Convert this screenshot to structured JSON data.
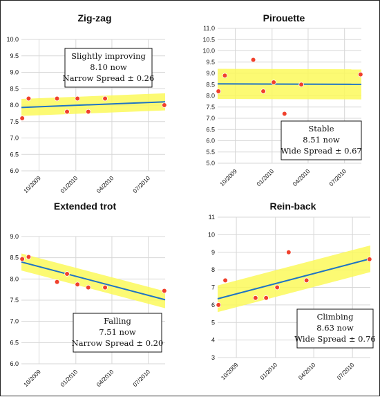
{
  "chart_data": [
    {
      "type": "scatter",
      "title": "Zig-zag",
      "ylim": [
        6.0,
        10.0
      ],
      "yticks": [
        "10.0",
        "9.5",
        "9.0",
        "8.5",
        "8.0",
        "7.5",
        "7.0",
        "6.5",
        "6.0"
      ],
      "xticks": [
        "10/2009",
        "01/2010",
        "04/2010",
        "07/2010"
      ],
      "points": [
        {
          "x": "2009-08-20",
          "y": 7.6
        },
        {
          "x": "2009-09-05",
          "y": 8.2
        },
        {
          "x": "2009-11-15",
          "y": 8.2
        },
        {
          "x": "2009-12-10",
          "y": 7.8
        },
        {
          "x": "2010-01-05",
          "y": 8.2
        },
        {
          "x": "2010-02-01",
          "y": 7.8
        },
        {
          "x": "2010-03-15",
          "y": 8.2
        },
        {
          "x": "2010-08-10",
          "y": 8.0
        }
      ],
      "trend": {
        "start": 7.93,
        "end": 8.1
      },
      "spread": 0.26,
      "annotation": [
        "Slightly  improving",
        "8.10 now",
        "Narrow Spread ± 0.26"
      ]
    },
    {
      "type": "scatter",
      "title": "Pirouette",
      "ylim": [
        5.0,
        11.0
      ],
      "yticks": [
        "11.0",
        "10.5",
        "10.0",
        "9.5",
        "9.0",
        "8.5",
        "8.0",
        "7.5",
        "7.0",
        "6.5",
        "6.0",
        "5.5",
        "5.0"
      ],
      "xticks": [
        "10/2009",
        "01/2010",
        "04/2010",
        "07/2010"
      ],
      "points": [
        {
          "x": "2009-08-20",
          "y": 8.2
        },
        {
          "x": "2009-09-05",
          "y": 8.9
        },
        {
          "x": "2009-11-15",
          "y": 9.6
        },
        {
          "x": "2009-12-10",
          "y": 8.2
        },
        {
          "x": "2010-01-05",
          "y": 8.6
        },
        {
          "x": "2010-02-01",
          "y": 7.2
        },
        {
          "x": "2010-03-15",
          "y": 8.5
        },
        {
          "x": "2010-08-10",
          "y": 8.95
        }
      ],
      "trend": {
        "start": 8.53,
        "end": 8.51
      },
      "spread": 0.67,
      "annotation": [
        "Stable",
        "8.51 now",
        "Wide Spread ± 0.67"
      ]
    },
    {
      "type": "scatter",
      "title": "Extended trot",
      "ylim": [
        6.0,
        9.0
      ],
      "yticks": [
        "9.0",
        "8.5",
        "8.0",
        "7.5",
        "7.0",
        "6.5",
        "6.0"
      ],
      "xticks": [
        "10/2009",
        "01/2010",
        "04/2010",
        "07/2010"
      ],
      "points": [
        {
          "x": "2009-08-20",
          "y": 8.47
        },
        {
          "x": "2009-09-05",
          "y": 8.52
        },
        {
          "x": "2009-11-15",
          "y": 7.93
        },
        {
          "x": "2009-12-10",
          "y": 8.12
        },
        {
          "x": "2010-01-05",
          "y": 7.87
        },
        {
          "x": "2010-02-01",
          "y": 7.8
        },
        {
          "x": "2010-03-15",
          "y": 7.8
        },
        {
          "x": "2010-08-10",
          "y": 7.72
        }
      ],
      "trend": {
        "start": 8.4,
        "end": 7.51
      },
      "spread": 0.2,
      "annotation": [
        "Falling",
        "7.51 now",
        "Narrow Spread ± 0.20"
      ]
    },
    {
      "type": "scatter",
      "title": "Rein-back",
      "ylim": [
        2,
        11
      ],
      "yticks": [
        "11",
        "10",
        "9",
        "8",
        "7",
        "6",
        "5",
        "4",
        "3"
      ],
      "xticks": [
        "10/2009",
        "01/2010",
        "04/2010",
        "07/2010"
      ],
      "points": [
        {
          "x": "2009-08-20",
          "y": 6.0
        },
        {
          "x": "2009-09-05",
          "y": 7.4
        },
        {
          "x": "2009-11-15",
          "y": 6.4
        },
        {
          "x": "2009-12-10",
          "y": 6.4
        },
        {
          "x": "2010-01-05",
          "y": 7.0
        },
        {
          "x": "2010-02-01",
          "y": 9.0
        },
        {
          "x": "2010-03-15",
          "y": 7.4
        },
        {
          "x": "2010-08-10",
          "y": 8.6
        }
      ],
      "trend": {
        "start": 6.35,
        "end": 8.63
      },
      "spread": 0.76,
      "annotation": [
        "Climbing",
        "8.63 now",
        "Wide Spread ± 0.76"
      ]
    }
  ]
}
